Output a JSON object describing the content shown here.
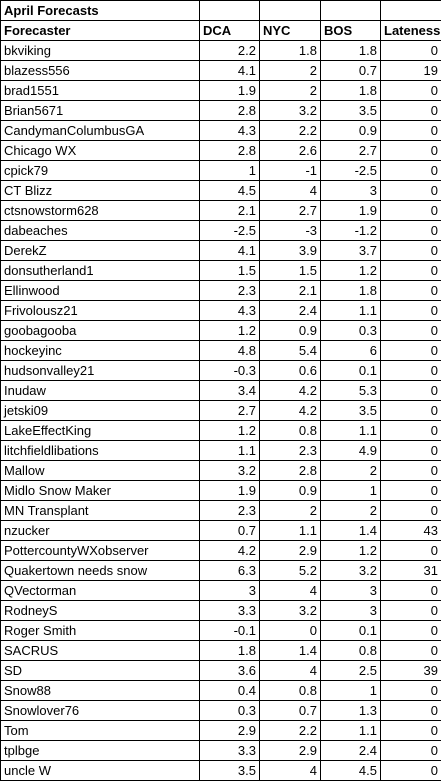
{
  "title": "April Forecasts",
  "table": {
    "header": [
      "Forecaster",
      "DCA",
      "NYC",
      "BOS",
      "Lateness"
    ],
    "rows": [
      [
        "bkviking",
        2.2,
        1.8,
        1.8,
        0
      ],
      [
        "blazess556",
        4.1,
        2,
        0.7,
        19
      ],
      [
        "brad1551",
        1.9,
        2,
        1.8,
        0
      ],
      [
        "Brian5671",
        2.8,
        3.2,
        3.5,
        0
      ],
      [
        "CandymanColumbusGA",
        4.3,
        2.2,
        0.9,
        0
      ],
      [
        "Chicago WX",
        2.8,
        2.6,
        2.7,
        0
      ],
      [
        "cpick79",
        1,
        -1,
        -2.5,
        0
      ],
      [
        "CT Blizz",
        4.5,
        4,
        3,
        0
      ],
      [
        "ctsnowstorm628",
        2.1,
        2.7,
        1.9,
        0
      ],
      [
        "dabeaches",
        -2.5,
        -3,
        -1.2,
        0
      ],
      [
        "DerekZ",
        4.1,
        3.9,
        3.7,
        0
      ],
      [
        "donsutherland1",
        1.5,
        1.5,
        1.2,
        0
      ],
      [
        "Ellinwood",
        2.3,
        2.1,
        1.8,
        0
      ],
      [
        "Frivolousz21",
        4.3,
        2.4,
        1.1,
        0
      ],
      [
        "goobagooba",
        1.2,
        0.9,
        0.3,
        0
      ],
      [
        "hockeyinc",
        4.8,
        5.4,
        6,
        0
      ],
      [
        "hudsonvalley21",
        -0.3,
        0.6,
        0.1,
        0
      ],
      [
        "Inudaw",
        3.4,
        4.2,
        5.3,
        0
      ],
      [
        "jetski09",
        2.7,
        4.2,
        3.5,
        0
      ],
      [
        "LakeEffectKing",
        1.2,
        0.8,
        1.1,
        0
      ],
      [
        "litchfieldlibations",
        1.1,
        2.3,
        4.9,
        0
      ],
      [
        "Mallow",
        3.2,
        2.8,
        2,
        0
      ],
      [
        "Midlo Snow Maker",
        1.9,
        0.9,
        1,
        0
      ],
      [
        "MN Transplant",
        2.3,
        2,
        2,
        0
      ],
      [
        "nzucker",
        0.7,
        1.1,
        1.4,
        43
      ],
      [
        "PottercountyWXobserver",
        4.2,
        2.9,
        1.2,
        0
      ],
      [
        "Quakertown needs snow",
        6.3,
        5.2,
        3.2,
        31
      ],
      [
        "QVectorman",
        3,
        4,
        3,
        0
      ],
      [
        "RodneyS",
        3.3,
        3.2,
        3,
        0
      ],
      [
        "Roger Smith",
        -0.1,
        0,
        0.1,
        0
      ],
      [
        "SACRUS",
        1.8,
        1.4,
        0.8,
        0
      ],
      [
        "SD",
        3.6,
        4,
        2.5,
        39
      ],
      [
        "Snow88",
        0.4,
        0.8,
        1,
        0
      ],
      [
        "Snowlover76",
        0.3,
        0.7,
        1.3,
        0
      ],
      [
        "Tom",
        2.9,
        2.2,
        1.1,
        0
      ],
      [
        "tplbge",
        3.3,
        2.9,
        2.4,
        0
      ],
      [
        "uncle W",
        3.5,
        4,
        4.5,
        0
      ]
    ]
  }
}
